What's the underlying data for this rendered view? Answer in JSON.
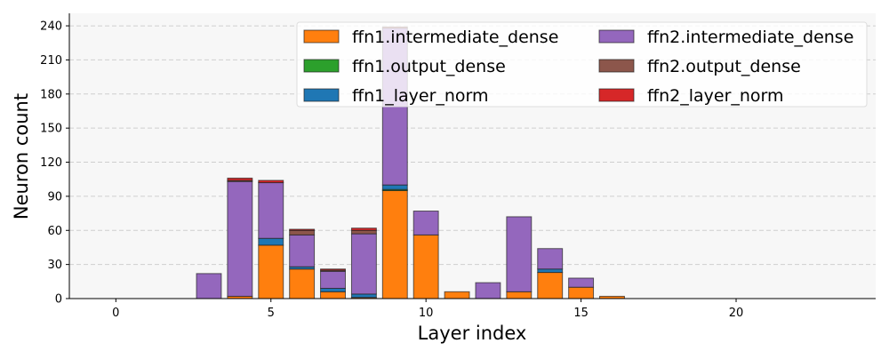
{
  "chart_data": {
    "type": "bar",
    "stacked": true,
    "xlabel": "Layer index",
    "ylabel": "Neuron count",
    "xlim": [
      -1.5,
      24.5
    ],
    "ylim": [
      0,
      251
    ],
    "xticks": [
      0,
      5,
      10,
      15,
      20
    ],
    "yticks": [
      0,
      30,
      60,
      90,
      120,
      150,
      180,
      210,
      240
    ],
    "grid": "y-dashed",
    "legend_placement": "top-right",
    "x": [
      3,
      4,
      5,
      6,
      7,
      8,
      9,
      10,
      11,
      12,
      13,
      14,
      15,
      16
    ],
    "series": [
      {
        "name": "ffn1.intermediate_dense",
        "color": "#ff7f0e",
        "values": [
          0,
          2,
          47,
          26,
          6,
          1,
          95,
          56,
          6,
          0,
          6,
          23,
          10,
          2
        ]
      },
      {
        "name": "ffn1.output_dense",
        "color": "#2ca02c",
        "values": [
          0,
          0,
          0,
          0,
          0,
          0,
          1,
          0,
          0,
          0,
          0,
          0,
          0,
          0
        ]
      },
      {
        "name": "ffn1_layer_norm",
        "color": "#1f77b4",
        "values": [
          0,
          0,
          6,
          2,
          3,
          3,
          4,
          0,
          0,
          0,
          0,
          3,
          0,
          0
        ]
      },
      {
        "name": "ffn2.intermediate_dense",
        "color": "#9467bd",
        "values": [
          22,
          101,
          49,
          28,
          15,
          53,
          138,
          21,
          0,
          14,
          66,
          18,
          8,
          0
        ]
      },
      {
        "name": "ffn2.output_dense",
        "color": "#8c564b",
        "values": [
          0,
          1,
          0,
          4,
          1,
          3,
          0,
          0,
          0,
          0,
          0,
          0,
          0,
          0
        ]
      },
      {
        "name": "ffn2_layer_norm",
        "color": "#d62728",
        "values": [
          0,
          2,
          2,
          1,
          1,
          2,
          1,
          0,
          0,
          0,
          0,
          0,
          0,
          0
        ]
      }
    ]
  }
}
